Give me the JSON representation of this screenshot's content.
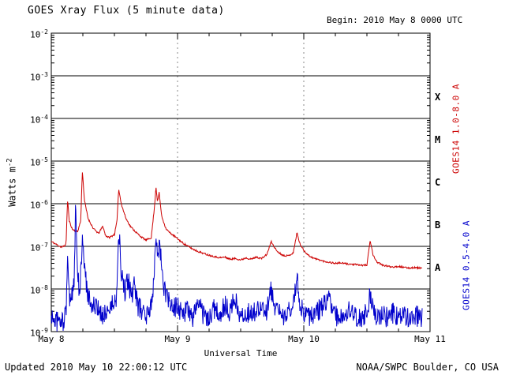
{
  "chart_data": {
    "type": "line",
    "title": "GOES Xray Flux (5 minute data)",
    "begin_label": "Begin: 2010 May 8 0000 UTC",
    "xlabel": "Universal Time",
    "ylabel": {
      "text": "Watts m",
      "exponent": "-2"
    },
    "footer_left": "Updated 2010 May 10 22:00:12 UTC",
    "footer_right": "NOAA/SWPC Boulder, CO USA",
    "x_range_hours": [
      0,
      72
    ],
    "x_tick_labels": [
      "May 8",
      "May 9",
      "May 10",
      "May 11"
    ],
    "x_major_tick_hours": [
      0,
      24,
      48,
      72
    ],
    "x_minor_tick_hours": [
      6,
      12,
      18,
      30,
      36,
      42,
      54,
      60,
      66
    ],
    "y_log_range": [
      -9,
      -2
    ],
    "y_tick_exponents": [
      "-2",
      "-3",
      "-4",
      "-5",
      "-6",
      "-7",
      "-8",
      "-9"
    ],
    "grid_h_decades": [
      -3,
      -4,
      -5,
      -6,
      -7,
      -8
    ],
    "grid_v_hours": [
      24,
      48
    ],
    "flare_classes": [
      {
        "label": "X",
        "log_center": -3.5
      },
      {
        "label": "M",
        "log_center": -4.5
      },
      {
        "label": "C",
        "log_center": -5.5
      },
      {
        "label": "B",
        "log_center": -6.5
      },
      {
        "label": "A",
        "log_center": -7.5
      }
    ],
    "series": [
      {
        "name": "GOES14 1.0-8.0 A",
        "color": "#cc0000",
        "noise_log10": 0.02,
        "seed": 11,
        "points": [
          [
            0,
            1.3e-07
          ],
          [
            1,
            1.1e-07
          ],
          [
            2,
            9.5e-08
          ],
          [
            2.8,
            1.1e-07
          ],
          [
            3.1,
            1.3e-06
          ],
          [
            3.4,
            4e-07
          ],
          [
            4,
            2.5e-07
          ],
          [
            5,
            2.2e-07
          ],
          [
            5.6,
            4e-07
          ],
          [
            5.9,
            6e-06
          ],
          [
            6.3,
            1.2e-06
          ],
          [
            7,
            4.5e-07
          ],
          [
            8,
            2.6e-07
          ],
          [
            9,
            2e-07
          ],
          [
            9.8,
            3e-07
          ],
          [
            10.3,
            1.8e-07
          ],
          [
            11,
            1.6e-07
          ],
          [
            12,
            1.9e-07
          ],
          [
            12.5,
            4e-07
          ],
          [
            12.8,
            2.2e-06
          ],
          [
            13.4,
            9e-07
          ],
          [
            14.2,
            4.5e-07
          ],
          [
            15,
            3e-07
          ],
          [
            16,
            2.2e-07
          ],
          [
            17,
            1.7e-07
          ],
          [
            18,
            1.4e-07
          ],
          [
            19,
            1.6e-07
          ],
          [
            19.6,
            8e-07
          ],
          [
            19.9,
            2.5e-06
          ],
          [
            20.2,
            1.1e-06
          ],
          [
            20.5,
            1.8e-06
          ],
          [
            21,
            5e-07
          ],
          [
            21.8,
            2.6e-07
          ],
          [
            22.5,
            2.1e-07
          ],
          [
            23.5,
            1.7e-07
          ],
          [
            24,
            1.5e-07
          ],
          [
            25,
            1.2e-07
          ],
          [
            26,
            1e-07
          ],
          [
            27,
            8.5e-08
          ],
          [
            28,
            7.5e-08
          ],
          [
            29,
            6.8e-08
          ],
          [
            30,
            6.2e-08
          ],
          [
            31,
            5.8e-08
          ],
          [
            32,
            5.4e-08
          ],
          [
            33,
            5.6e-08
          ],
          [
            34,
            5e-08
          ],
          [
            35,
            5.2e-08
          ],
          [
            36,
            4.8e-08
          ],
          [
            37,
            5.4e-08
          ],
          [
            38,
            5e-08
          ],
          [
            39,
            5.6e-08
          ],
          [
            40,
            5.2e-08
          ],
          [
            41,
            6.5e-08
          ],
          [
            41.8,
            1.3e-07
          ],
          [
            42.3,
            1e-07
          ],
          [
            43,
            7.5e-08
          ],
          [
            44,
            6.2e-08
          ],
          [
            45,
            6e-08
          ],
          [
            46,
            7e-08
          ],
          [
            46.7,
            2.1e-07
          ],
          [
            47.2,
            1.2e-07
          ],
          [
            48,
            8e-08
          ],
          [
            49,
            6e-08
          ],
          [
            50,
            5.2e-08
          ],
          [
            51,
            4.8e-08
          ],
          [
            52,
            4.4e-08
          ],
          [
            53,
            4.2e-08
          ],
          [
            54,
            4e-08
          ],
          [
            55,
            4.1e-08
          ],
          [
            56,
            3.9e-08
          ],
          [
            57,
            3.8e-08
          ],
          [
            58,
            3.7e-08
          ],
          [
            59,
            3.6e-08
          ],
          [
            60,
            3.6e-08
          ],
          [
            60.6,
            1.4e-07
          ],
          [
            61.2,
            6e-08
          ],
          [
            62,
            4.2e-08
          ],
          [
            63,
            3.6e-08
          ],
          [
            64,
            3.4e-08
          ],
          [
            65,
            3.3e-08
          ],
          [
            66,
            3.4e-08
          ],
          [
            67,
            3.2e-08
          ],
          [
            68,
            3.1e-08
          ],
          [
            69,
            3.2e-08
          ],
          [
            70,
            3.1e-08
          ],
          [
            70.5,
            3.1e-08
          ]
        ]
      },
      {
        "name": "GOES14 0.5-4.0 A",
        "color": "#0000cc",
        "noise_log10": 0.25,
        "seed": 97,
        "points": [
          [
            0,
            2.2e-09
          ],
          [
            1,
            1.8e-09
          ],
          [
            2,
            1.6e-09
          ],
          [
            2.8,
            2.5e-09
          ],
          [
            3.1,
            9e-08
          ],
          [
            3.4,
            6e-09
          ],
          [
            4,
            8e-09
          ],
          [
            4.4,
            2e-08
          ],
          [
            4.6,
            9e-07
          ],
          [
            4.9,
            4e-08
          ],
          [
            5.4,
            6e-09
          ],
          [
            5.9,
            1.6e-07
          ],
          [
            6.3,
            3e-08
          ],
          [
            6.8,
            9e-09
          ],
          [
            7.5,
            5e-09
          ],
          [
            8.5,
            3.5e-09
          ],
          [
            9.5,
            2.5e-09
          ],
          [
            10.5,
            3e-09
          ],
          [
            11.5,
            4e-09
          ],
          [
            12.4,
            6e-09
          ],
          [
            12.8,
            3e-07
          ],
          [
            13.3,
            2.5e-08
          ],
          [
            14,
            7e-09
          ],
          [
            14.6,
            1.8e-08
          ],
          [
            15.2,
            6e-09
          ],
          [
            15.8,
            1.2e-08
          ],
          [
            16.5,
            4e-09
          ],
          [
            17.5,
            2.8e-09
          ],
          [
            18.5,
            2.4e-09
          ],
          [
            19.3,
            6e-09
          ],
          [
            19.9,
            2.4e-07
          ],
          [
            20.3,
            6e-08
          ],
          [
            20.6,
            1.2e-07
          ],
          [
            21.2,
            1.5e-08
          ],
          [
            22,
            6e-09
          ],
          [
            23,
            3.5e-09
          ],
          [
            24,
            4e-09
          ],
          [
            25,
            2.6e-09
          ],
          [
            26,
            3.2e-09
          ],
          [
            27,
            2.2e-09
          ],
          [
            28,
            4.5e-09
          ],
          [
            29,
            2.4e-09
          ],
          [
            30,
            2e-09
          ],
          [
            31,
            3.5e-09
          ],
          [
            32,
            2.6e-09
          ],
          [
            33,
            4e-09
          ],
          [
            34,
            2.8e-09
          ],
          [
            34.8,
            8e-09
          ],
          [
            35.5,
            3e-09
          ],
          [
            36,
            2.2e-09
          ],
          [
            37,
            3e-09
          ],
          [
            38,
            2.4e-09
          ],
          [
            39,
            3.4e-09
          ],
          [
            40,
            4.5e-09
          ],
          [
            41,
            3e-09
          ],
          [
            41.8,
            9e-09
          ],
          [
            42.3,
            5e-09
          ],
          [
            43,
            2.8e-09
          ],
          [
            44,
            2.2e-09
          ],
          [
            45,
            3.2e-09
          ],
          [
            46,
            4e-09
          ],
          [
            46.7,
            1.8e-08
          ],
          [
            47.2,
            5e-09
          ],
          [
            48,
            3e-09
          ],
          [
            49,
            2.4e-09
          ],
          [
            50,
            2.1e-09
          ],
          [
            51,
            3.4e-09
          ],
          [
            52,
            4.5e-09
          ],
          [
            52.8,
            8e-09
          ],
          [
            53.5,
            3e-09
          ],
          [
            54,
            2.4e-09
          ],
          [
            55,
            2.1e-09
          ],
          [
            56,
            2.6e-09
          ],
          [
            57,
            3.6e-09
          ],
          [
            58,
            2.4e-09
          ],
          [
            59,
            2.1e-09
          ],
          [
            60,
            2.8e-09
          ],
          [
            60.6,
            8e-09
          ],
          [
            61.2,
            3e-09
          ],
          [
            62,
            2.2e-09
          ],
          [
            63,
            2.6e-09
          ],
          [
            64,
            2.1e-09
          ],
          [
            65,
            2.8e-09
          ],
          [
            66,
            2e-09
          ],
          [
            67,
            2.4e-09
          ],
          [
            68,
            2.2e-09
          ],
          [
            69,
            2.6e-09
          ],
          [
            70,
            2.1e-09
          ],
          [
            70.5,
            2.2e-09
          ]
        ]
      }
    ]
  }
}
